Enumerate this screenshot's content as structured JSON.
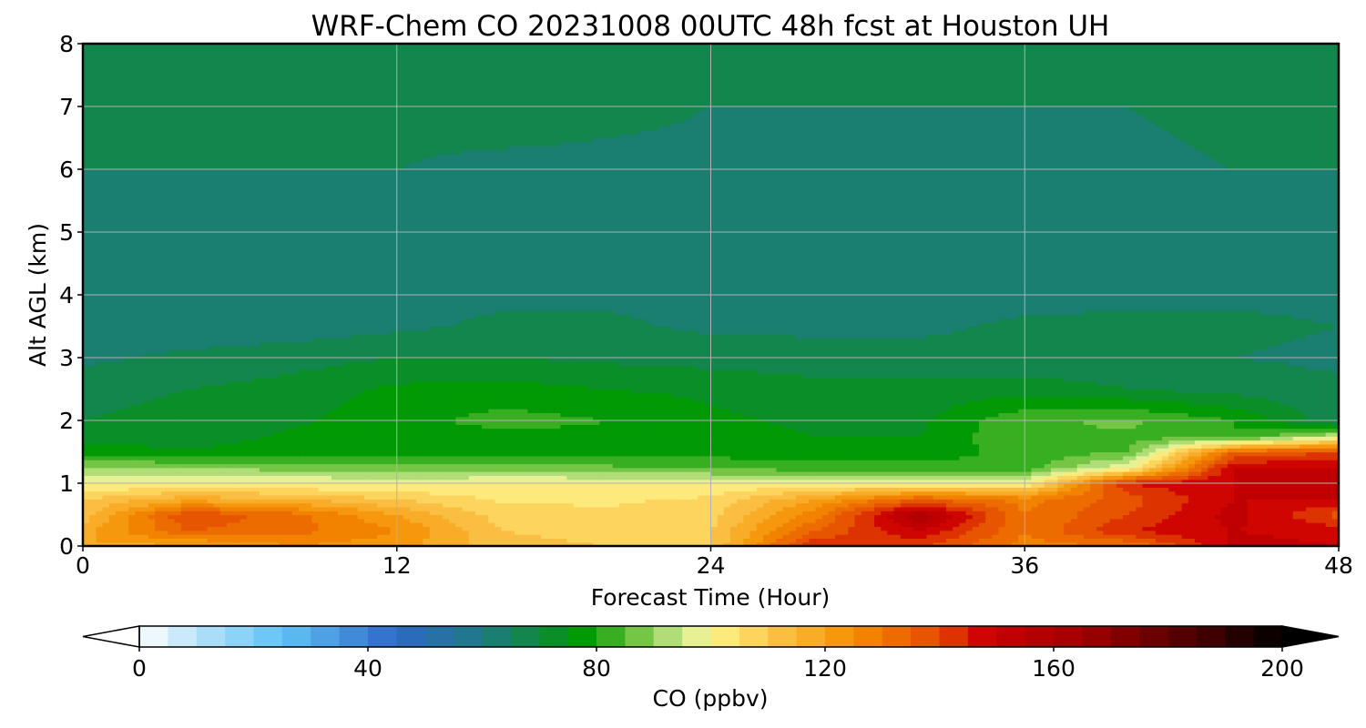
{
  "chart_data": {
    "type": "heatmap",
    "title": "WRF-Chem CO  20231008 00UTC 48h fcst at Houston UH",
    "xlabel": "Forecast Time (Hour)",
    "ylabel": "Alt AGL (km)",
    "x_ticks": [
      0,
      12,
      24,
      36,
      48
    ],
    "y_ticks": [
      0,
      1,
      2,
      3,
      4,
      5,
      6,
      7,
      8
    ],
    "xlim": [
      0,
      48
    ],
    "ylim": [
      0,
      8
    ],
    "grid": true,
    "colorbar": {
      "label": "CO  (ppbv)",
      "orientation": "horizontal",
      "position": "bottom",
      "min": 0,
      "max": 200,
      "step": 5,
      "extend": "both",
      "ticks": [
        0,
        40,
        80,
        120,
        160,
        200
      ],
      "color_stops": [
        {
          "value": 0,
          "color": "#ffffff"
        },
        {
          "value": 10,
          "color": "#b8e2f8"
        },
        {
          "value": 25,
          "color": "#5fc3f5"
        },
        {
          "value": 45,
          "color": "#2f68c8"
        },
        {
          "value": 60,
          "color": "#1e7a82"
        },
        {
          "value": 70,
          "color": "#0e8a3a"
        },
        {
          "value": 78,
          "color": "#009a00"
        },
        {
          "value": 88,
          "color": "#7cc84a"
        },
        {
          "value": 96,
          "color": "#d9ee9a"
        },
        {
          "value": 100,
          "color": "#fff58a"
        },
        {
          "value": 110,
          "color": "#fbc94f"
        },
        {
          "value": 125,
          "color": "#f58e00"
        },
        {
          "value": 140,
          "color": "#e44a00"
        },
        {
          "value": 148,
          "color": "#cc0000"
        },
        {
          "value": 165,
          "color": "#a00000"
        },
        {
          "value": 185,
          "color": "#4a0000"
        },
        {
          "value": 200,
          "color": "#000000"
        }
      ]
    },
    "x": [
      0,
      4,
      8,
      12,
      16,
      20,
      24,
      28,
      32,
      36,
      40,
      44,
      48
    ],
    "y": [
      0,
      0.25,
      0.5,
      0.75,
      1,
      1.25,
      1.5,
      1.75,
      2,
      2.5,
      3,
      3.5,
      4,
      5,
      6,
      7,
      8
    ],
    "z": [
      [
        120,
        118,
        125,
        122,
        112,
        110,
        110,
        145,
        140,
        128,
        130,
        152,
        150
      ],
      [
        118,
        135,
        132,
        125,
        110,
        108,
        110,
        135,
        150,
        130,
        145,
        150,
        148
      ],
      [
        112,
        140,
        132,
        120,
        108,
        106,
        108,
        128,
        160,
        130,
        140,
        152,
        138
      ],
      [
        110,
        118,
        115,
        110,
        104,
        104,
        106,
        120,
        135,
        128,
        138,
        150,
        150
      ],
      [
        100,
        100,
        100,
        99,
        101,
        100,
        100,
        101,
        100,
        100,
        145,
        150,
        150
      ],
      [
        90,
        90,
        88,
        86,
        86,
        86,
        84,
        82,
        82,
        82,
        100,
        150,
        150
      ],
      [
        78,
        76,
        77,
        78,
        78,
        79,
        78,
        77,
        77,
        82,
        85,
        135,
        140
      ],
      [
        72,
        72,
        76,
        77,
        78,
        79,
        77,
        75,
        75,
        85,
        84,
        80,
        95
      ],
      [
        70,
        72,
        74,
        78,
        82,
        80,
        76,
        74,
        74,
        84,
        86,
        80,
        66
      ],
      [
        68,
        70,
        72,
        76,
        77,
        75,
        74,
        72,
        72,
        73,
        70,
        68,
        66
      ],
      [
        64,
        66,
        68,
        70,
        70,
        69,
        68,
        67,
        67,
        66,
        66,
        65,
        64
      ],
      [
        64,
        62,
        62,
        64,
        66,
        66,
        64,
        64,
        64,
        66,
        67,
        66,
        65
      ],
      [
        64,
        62,
        62,
        63,
        64,
        64,
        63,
        63,
        63,
        63,
        63,
        64,
        64
      ],
      [
        65,
        64,
        63,
        64,
        63,
        63,
        63,
        63,
        63,
        63,
        63,
        64,
        64
      ],
      [
        65,
        65,
        65,
        65,
        64,
        64,
        64,
        64,
        64,
        64,
        64,
        65,
        65
      ],
      [
        65,
        65,
        65,
        66,
        67,
        66,
        65,
        65,
        65,
        65,
        65,
        66,
        65
      ],
      [
        65,
        65,
        67,
        67,
        67,
        66,
        66,
        66,
        66,
        66,
        65,
        65,
        65
      ]
    ]
  }
}
